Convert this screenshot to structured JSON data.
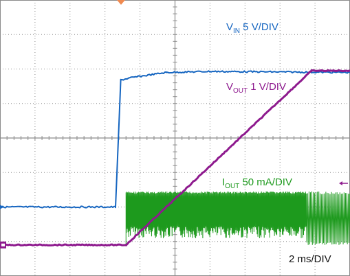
{
  "colors": {
    "background": "#ffffff",
    "grid": "#8a8a8a",
    "vin": "#1565c0",
    "vout": "#8e1a8e",
    "iout": "#1e9a1e",
    "trigger_marker": "#f08a50",
    "text_black": "#111111"
  },
  "chart_data": {
    "type": "line",
    "title": "",
    "xlabel": "",
    "ylabel": "",
    "grid": true,
    "divisions": {
      "x": 10,
      "y": 8
    },
    "x_unit": "ms",
    "x_range": [
      0,
      20
    ],
    "timebase_label": "2 ms/DIV",
    "series": [
      {
        "name_main": "V",
        "name_sub": "IN",
        "scale_text": " 5 V/DIV",
        "color": "vin",
        "baseline_div": -2.0,
        "points": [
          [
            0,
            -2.0
          ],
          [
            6.6,
            -2.0
          ],
          [
            6.75,
            -0.2
          ],
          [
            6.9,
            1.68
          ],
          [
            7.5,
            1.75
          ],
          [
            9.5,
            1.9
          ],
          [
            12.0,
            1.93
          ],
          [
            20,
            1.9
          ]
        ]
      },
      {
        "name_main": "V",
        "name_sub": "OUT",
        "scale_text": " 1 V/DIV",
        "color": "vout",
        "baseline_div": -3.1,
        "points": [
          [
            0,
            -3.1
          ],
          [
            7.2,
            -3.1
          ],
          [
            17.8,
            1.95
          ],
          [
            20,
            1.95
          ]
        ]
      },
      {
        "name_main": "I",
        "name_sub": "OUT",
        "scale_text": " 50 mA/DIV",
        "color": "iout",
        "baseline_div": -3.1,
        "burst": {
          "start_ms": 7.2,
          "dense_end_ms": 17.5,
          "end_ms": 20,
          "high_div": -1.55,
          "low_div": -3.1,
          "low_dense_div": -2.55
        }
      }
    ]
  }
}
